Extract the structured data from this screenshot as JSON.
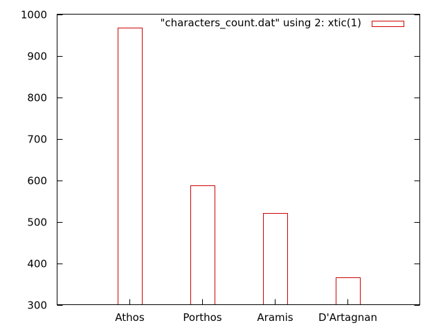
{
  "chart_data": {
    "type": "bar",
    "categories": [
      "Athos",
      "Porthos",
      "Aramis",
      "D'Artagnan"
    ],
    "series": [
      {
        "name": "\"characters_count.dat\" using 2: xtic(1)",
        "values": [
          968,
          587,
          521,
          366
        ],
        "color": "#cc0000"
      }
    ],
    "title": "",
    "xlabel": "",
    "ylabel": "",
    "ylim": [
      300,
      1000
    ],
    "yticks": [
      300,
      400,
      500,
      600,
      700,
      800,
      900,
      1000
    ],
    "grid": false,
    "legend": "top-right"
  }
}
